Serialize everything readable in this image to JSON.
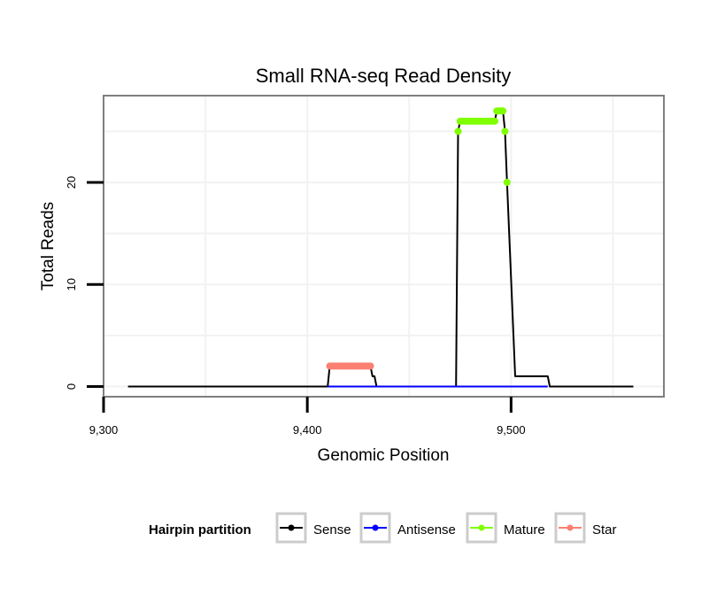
{
  "chart_data": {
    "type": "line",
    "title": "Small RNA-seq Read Density",
    "xlabel": "Genomic Position",
    "ylabel": "Total Reads",
    "xlim": [
      9300,
      9575
    ],
    "ylim": [
      -1,
      28.5
    ],
    "x_ticks": [
      {
        "value": 9300,
        "label": "9,300"
      },
      {
        "value": 9400,
        "label": "9,400"
      },
      {
        "value": 9500,
        "label": "9,500"
      }
    ],
    "y_ticks": [
      {
        "value": 0,
        "label": "0"
      },
      {
        "value": 10,
        "label": "10"
      },
      {
        "value": 20,
        "label": "20"
      }
    ],
    "grid_x": [
      9350,
      9400,
      9450,
      9500,
      9550
    ],
    "grid_y": [
      0,
      5,
      10,
      15,
      20,
      25
    ],
    "legend": {
      "title": "Hairpin partition",
      "entries": [
        {
          "name": "Sense",
          "color": "#000000"
        },
        {
          "name": "Antisense",
          "color": "#0000ff"
        },
        {
          "name": "Mature",
          "color": "#7fff00"
        },
        {
          "name": "Star",
          "color": "#fa8072"
        }
      ]
    },
    "series": [
      {
        "name": "Sense",
        "color": "#000000",
        "points": [
          [
            9312,
            0
          ],
          [
            9410,
            0
          ],
          [
            9411,
            2
          ],
          [
            9431,
            2
          ],
          [
            9432,
            1
          ],
          [
            9433,
            1
          ],
          [
            9434,
            0
          ],
          [
            9473,
            0
          ],
          [
            9474,
            25
          ],
          [
            9475,
            26
          ],
          [
            9492,
            26
          ],
          [
            9493,
            27
          ],
          [
            9496,
            27
          ],
          [
            9497,
            25
          ],
          [
            9498,
            20
          ],
          [
            9502,
            1
          ],
          [
            9518,
            1
          ],
          [
            9519,
            0
          ],
          [
            9560,
            0
          ]
        ]
      },
      {
        "name": "Antisense",
        "color": "#0000ff",
        "points": [
          [
            9410,
            0
          ],
          [
            9434,
            0
          ],
          [
            9473,
            0
          ],
          [
            9518,
            0
          ]
        ]
      },
      {
        "name": "Mature",
        "color": "#7fff00",
        "points": [
          [
            9474,
            25
          ],
          [
            9475,
            26
          ],
          [
            9476,
            26
          ],
          [
            9477,
            26
          ],
          [
            9478,
            26
          ],
          [
            9479,
            26
          ],
          [
            9480,
            26
          ],
          [
            9481,
            26
          ],
          [
            9482,
            26
          ],
          [
            9483,
            26
          ],
          [
            9484,
            26
          ],
          [
            9485,
            26
          ],
          [
            9486,
            26
          ],
          [
            9487,
            26
          ],
          [
            9488,
            26
          ],
          [
            9489,
            26
          ],
          [
            9490,
            26
          ],
          [
            9491,
            26
          ],
          [
            9492,
            26
          ],
          [
            9493,
            27
          ],
          [
            9494,
            27
          ],
          [
            9495,
            27
          ],
          [
            9496,
            27
          ],
          [
            9497,
            25
          ],
          [
            9498,
            20
          ]
        ]
      },
      {
        "name": "Star",
        "color": "#fa8072",
        "points": [
          [
            9411,
            2
          ],
          [
            9412,
            2
          ],
          [
            9413,
            2
          ],
          [
            9414,
            2
          ],
          [
            9415,
            2
          ],
          [
            9416,
            2
          ],
          [
            9417,
            2
          ],
          [
            9418,
            2
          ],
          [
            9419,
            2
          ],
          [
            9420,
            2
          ],
          [
            9421,
            2
          ],
          [
            9422,
            2
          ],
          [
            9423,
            2
          ],
          [
            9424,
            2
          ],
          [
            9425,
            2
          ],
          [
            9426,
            2
          ],
          [
            9427,
            2
          ],
          [
            9428,
            2
          ],
          [
            9429,
            2
          ],
          [
            9430,
            2
          ],
          [
            9431,
            2
          ]
        ]
      }
    ]
  }
}
